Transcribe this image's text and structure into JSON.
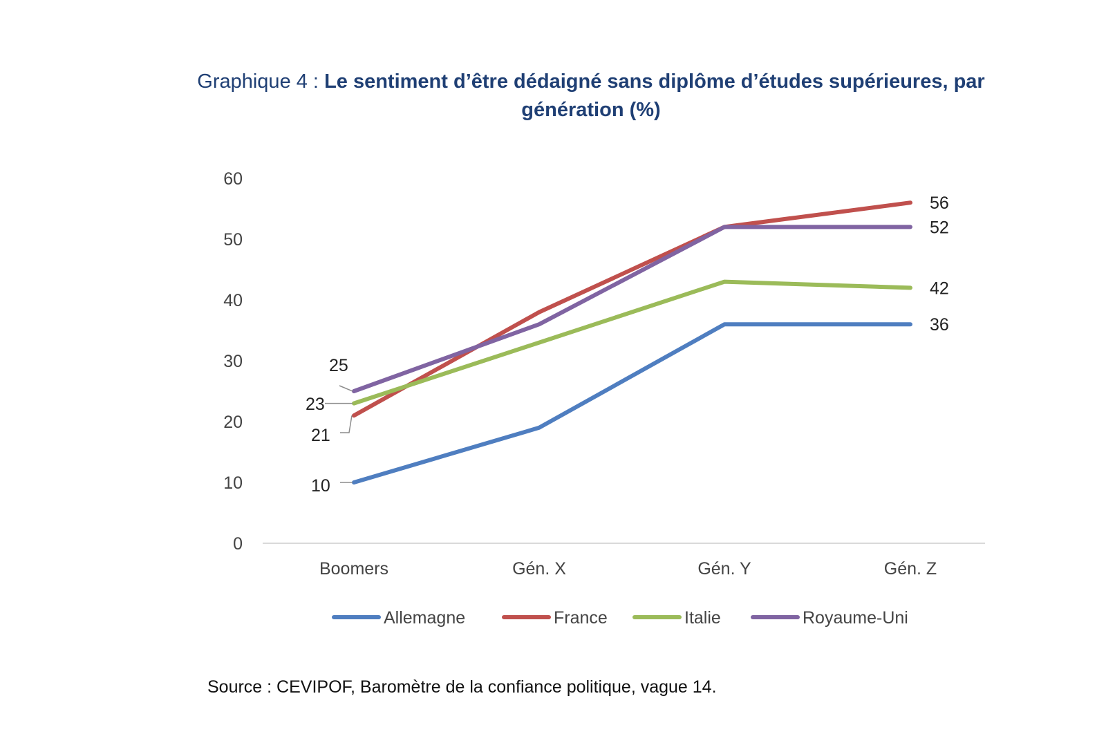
{
  "title": {
    "prefix": "Graphique 4 :",
    "main": "Le sentiment d’être dédaigné sans diplôme d’études supérieures, par génération (%)"
  },
  "source": "Source : CEVIPOF, Baromètre de la confiance politique, vague 14.",
  "chart_data": {
    "type": "line",
    "categories": [
      "Boomers",
      "Gén. X",
      "Gén. Y",
      "Gén. Z"
    ],
    "ylim": [
      0,
      60
    ],
    "yticks": [
      0,
      10,
      20,
      30,
      40,
      50,
      60
    ],
    "grid": false,
    "legend_position": "bottom",
    "series": [
      {
        "name": "Allemagne",
        "color": "#4f7ec0",
        "values": [
          10,
          19,
          36,
          36
        ]
      },
      {
        "name": "France",
        "color": "#c0504d",
        "values": [
          21,
          38,
          52,
          56
        ]
      },
      {
        "name": "Italie",
        "color": "#9bbb59",
        "values": [
          23,
          33,
          43,
          42
        ]
      },
      {
        "name": "Royaume-Uni",
        "color": "#8064a2",
        "values": [
          25,
          36,
          52,
          52
        ]
      }
    ],
    "data_labels": {
      "first": [
        "10",
        "21",
        "23",
        "25"
      ],
      "last": [
        "36",
        "56",
        "42",
        "52"
      ]
    }
  }
}
